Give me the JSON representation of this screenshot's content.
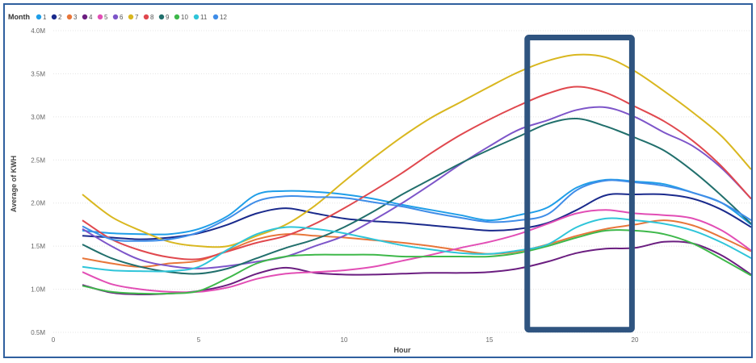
{
  "chart_data": {
    "type": "line",
    "xlabel": "Hour",
    "ylabel": "Average of KWH",
    "legend_title": "Month",
    "legend_position": "top-left",
    "xlim": [
      0,
      24
    ],
    "ylim": [
      0.5,
      4.0
    ],
    "x_ticks": [
      0,
      5,
      10,
      15,
      20
    ],
    "x_tick_labels": [
      "0",
      "5",
      "10",
      "15",
      "20"
    ],
    "y_ticks": [
      0.5,
      1.0,
      1.5,
      2.0,
      2.5,
      3.0,
      3.5,
      4.0
    ],
    "y_tick_labels": [
      "0.5M",
      "1.0M",
      "1.5M",
      "2.0M",
      "2.5M",
      "3.0M",
      "3.5M",
      "4.0M"
    ],
    "y_unit": "M",
    "x": [
      1,
      2,
      3,
      4,
      5,
      6,
      7,
      8,
      9,
      10,
      11,
      12,
      13,
      14,
      15,
      16,
      17,
      18,
      19,
      20,
      21,
      22,
      23,
      24
    ],
    "series": [
      {
        "name": "1",
        "color": "#1f9ee8",
        "values": [
          1.68,
          1.65,
          1.64,
          1.64,
          1.7,
          1.85,
          2.1,
          2.14,
          2.13,
          2.1,
          2.05,
          1.98,
          1.92,
          1.86,
          1.8,
          1.86,
          1.95,
          2.18,
          2.27,
          2.25,
          2.22,
          2.12,
          2.0,
          1.75
        ]
      },
      {
        "name": "2",
        "color": "#1a2a8c",
        "values": [
          1.62,
          1.6,
          1.58,
          1.6,
          1.65,
          1.75,
          1.88,
          1.94,
          1.88,
          1.82,
          1.79,
          1.77,
          1.74,
          1.71,
          1.68,
          1.7,
          1.77,
          1.92,
          2.09,
          2.1,
          2.1,
          2.05,
          1.92,
          1.72
        ]
      },
      {
        "name": "3",
        "color": "#e8763a",
        "values": [
          1.36,
          1.3,
          1.26,
          1.3,
          1.33,
          1.45,
          1.58,
          1.64,
          1.62,
          1.6,
          1.57,
          1.54,
          1.5,
          1.45,
          1.41,
          1.44,
          1.52,
          1.62,
          1.7,
          1.75,
          1.8,
          1.74,
          1.6,
          1.44
        ]
      },
      {
        "name": "4",
        "color": "#6b1e80",
        "values": [
          1.05,
          0.96,
          0.94,
          0.95,
          0.98,
          1.05,
          1.18,
          1.25,
          1.19,
          1.17,
          1.17,
          1.18,
          1.19,
          1.19,
          1.2,
          1.24,
          1.32,
          1.42,
          1.47,
          1.48,
          1.55,
          1.53,
          1.39,
          1.17
        ]
      },
      {
        "name": "5",
        "color": "#e24eb5",
        "values": [
          1.2,
          1.06,
          1.0,
          0.97,
          0.97,
          1.02,
          1.12,
          1.18,
          1.2,
          1.22,
          1.26,
          1.33,
          1.4,
          1.48,
          1.55,
          1.64,
          1.76,
          1.88,
          1.92,
          1.88,
          1.86,
          1.82,
          1.68,
          1.45
        ]
      },
      {
        "name": "6",
        "color": "#7d55c9",
        "values": [
          1.7,
          1.5,
          1.34,
          1.27,
          1.24,
          1.27,
          1.32,
          1.38,
          1.5,
          1.62,
          1.8,
          2.0,
          2.22,
          2.45,
          2.66,
          2.85,
          2.96,
          3.08,
          3.11,
          3.0,
          2.82,
          2.66,
          2.4,
          2.05
        ]
      },
      {
        "name": "7",
        "color": "#d9b71f",
        "values": [
          2.1,
          1.84,
          1.68,
          1.55,
          1.5,
          1.5,
          1.62,
          1.75,
          1.97,
          2.25,
          2.52,
          2.77,
          2.99,
          3.17,
          3.35,
          3.52,
          3.65,
          3.72,
          3.69,
          3.53,
          3.3,
          3.05,
          2.77,
          2.39
        ]
      },
      {
        "name": "8",
        "color": "#e0484e",
        "values": [
          1.8,
          1.58,
          1.45,
          1.37,
          1.35,
          1.44,
          1.54,
          1.62,
          1.76,
          1.94,
          2.14,
          2.35,
          2.58,
          2.79,
          2.97,
          3.13,
          3.27,
          3.35,
          3.28,
          3.12,
          2.95,
          2.72,
          2.42,
          2.05
        ]
      },
      {
        "name": "9",
        "color": "#216f6c",
        "values": [
          1.52,
          1.36,
          1.26,
          1.2,
          1.18,
          1.24,
          1.36,
          1.48,
          1.58,
          1.72,
          1.9,
          2.1,
          2.28,
          2.46,
          2.62,
          2.77,
          2.92,
          2.98,
          2.89,
          2.76,
          2.61,
          2.37,
          2.08,
          1.76
        ]
      },
      {
        "name": "10",
        "color": "#3eb84a",
        "values": [
          1.04,
          0.97,
          0.95,
          0.95,
          0.98,
          1.13,
          1.3,
          1.38,
          1.4,
          1.4,
          1.4,
          1.38,
          1.38,
          1.38,
          1.38,
          1.42,
          1.5,
          1.6,
          1.68,
          1.68,
          1.64,
          1.53,
          1.35,
          1.16
        ]
      },
      {
        "name": "11",
        "color": "#2fc5d9",
        "values": [
          1.26,
          1.22,
          1.21,
          1.21,
          1.26,
          1.46,
          1.64,
          1.72,
          1.7,
          1.65,
          1.58,
          1.51,
          1.46,
          1.42,
          1.41,
          1.45,
          1.52,
          1.72,
          1.82,
          1.8,
          1.76,
          1.68,
          1.54,
          1.36
        ]
      },
      {
        "name": "12",
        "color": "#3f8de8",
        "values": [
          1.73,
          1.58,
          1.56,
          1.58,
          1.66,
          1.82,
          2.02,
          2.08,
          2.07,
          2.06,
          2.01,
          1.96,
          1.89,
          1.83,
          1.78,
          1.8,
          1.87,
          2.15,
          2.26,
          2.24,
          2.2,
          2.12,
          2.0,
          1.8
        ]
      }
    ],
    "annotation": {
      "type": "highlight-box",
      "color": "#2f5480",
      "x_range": [
        16.3,
        19.9
      ],
      "y_range": [
        0.53,
        3.92
      ]
    }
  }
}
